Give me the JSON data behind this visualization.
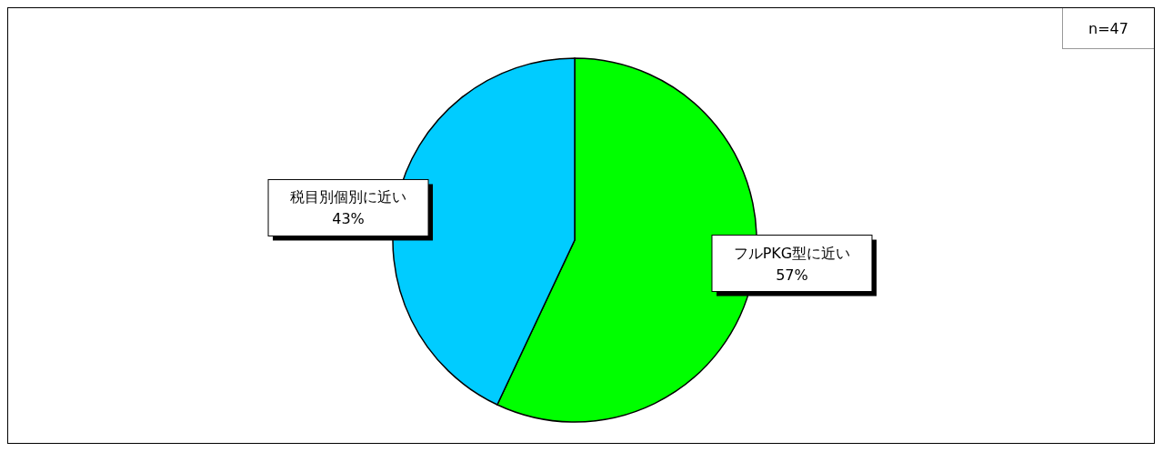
{
  "chart_data": {
    "type": "pie",
    "categories": [
      "フルPKG型に近い",
      "税目別個別に近い"
    ],
    "values": [
      57,
      43
    ],
    "colors": [
      "#00ff00",
      "#00ccff"
    ],
    "value_labels": [
      "57%",
      "43%"
    ],
    "annotations": [
      "n=47"
    ]
  }
}
